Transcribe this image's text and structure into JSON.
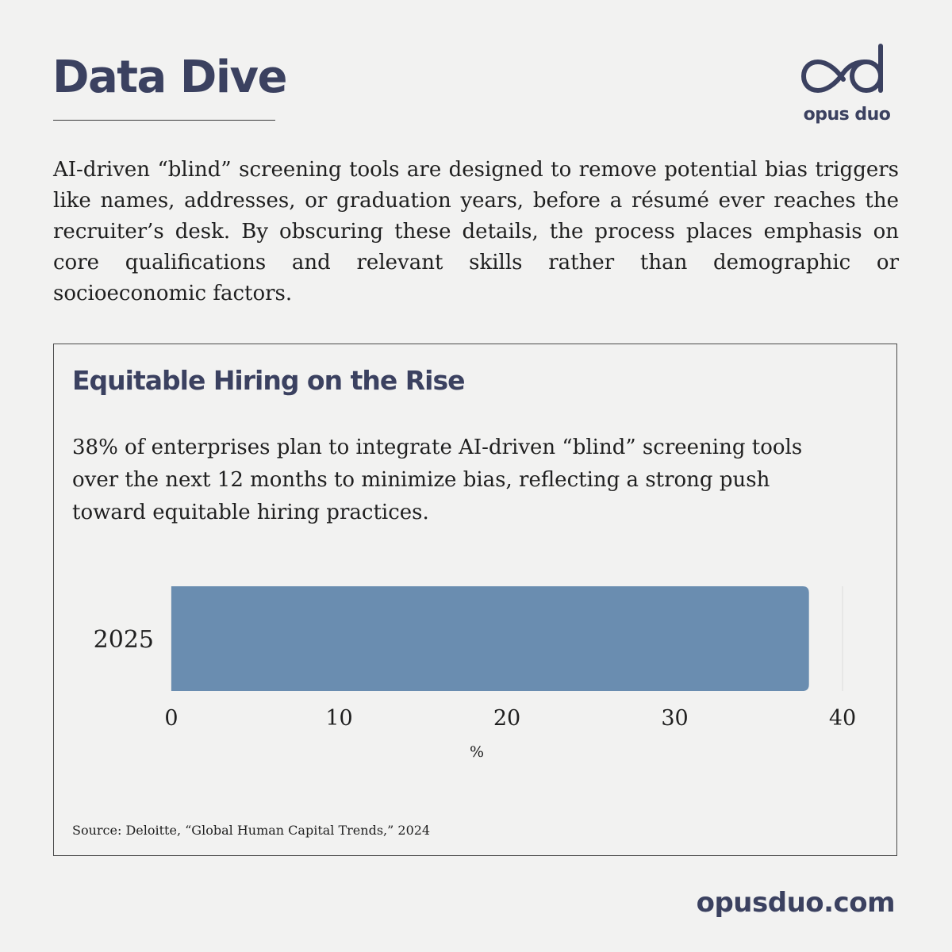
{
  "header": {
    "title": "Data Dive"
  },
  "logo": {
    "name": "opus duo",
    "icon": "infinity-od-logo-icon"
  },
  "intro": {
    "text": "AI-driven “blind” screening tools are designed to remove potential bias triggers like names, addresses, or graduation years, before a résumé ever reaches the recruiter’s desk. By obscuring these details, the process places emphasis on core qualifications and relevant skills rather than demographic or socioeconomic factors."
  },
  "card": {
    "title": "Equitable Hiring on the Rise",
    "text": "38% of enterprises plan to integrate AI-driven “blind” screening tools over the next 12 months to minimize bias, reflecting a strong push toward equitable hiring practices.",
    "source": "Source: Deloitte, “Global Human Capital Trends,” 2024"
  },
  "chart_data": {
    "type": "bar",
    "orientation": "horizontal",
    "categories": [
      "2025"
    ],
    "values": [
      38
    ],
    "xlabel": "%",
    "ylabel": "",
    "xlim": [
      0,
      40
    ],
    "ticks": [
      0,
      10,
      20,
      30,
      40
    ],
    "title": "",
    "bar_color": "#6a8db0"
  },
  "footer": {
    "website": "opusduo.com"
  },
  "colors": {
    "accent": "#3b4160",
    "background": "#f2f2f1",
    "bar": "#6a8db0"
  }
}
